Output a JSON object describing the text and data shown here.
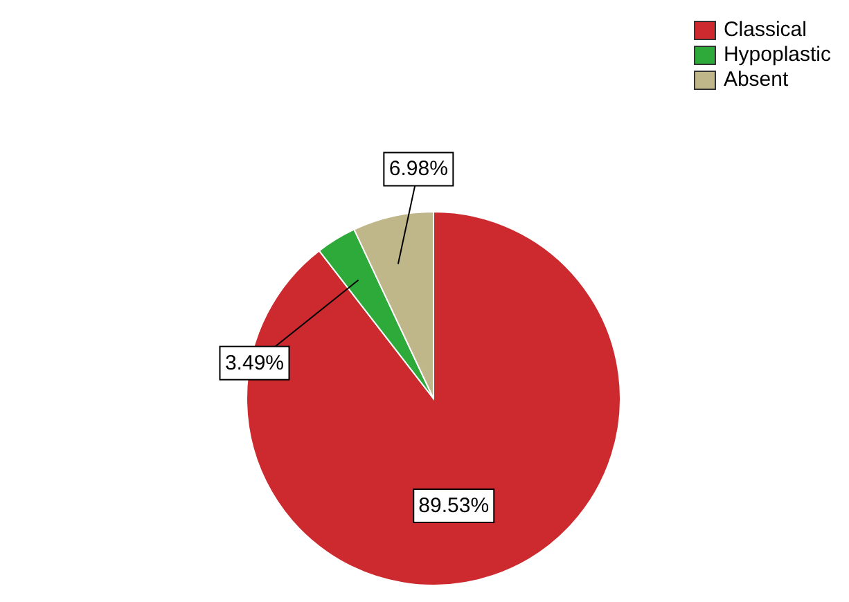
{
  "chart_data": {
    "type": "pie",
    "categories": [
      "Classical",
      "Hypoplastic",
      "Absent"
    ],
    "values": [
      89.53,
      3.49,
      6.98
    ],
    "colors": [
      "#cc2a2e",
      "#2eaa3a",
      "#bfb68a"
    ],
    "value_labels": [
      "89.53%",
      "3.49%",
      "6.98%"
    ],
    "legend": "top right"
  }
}
